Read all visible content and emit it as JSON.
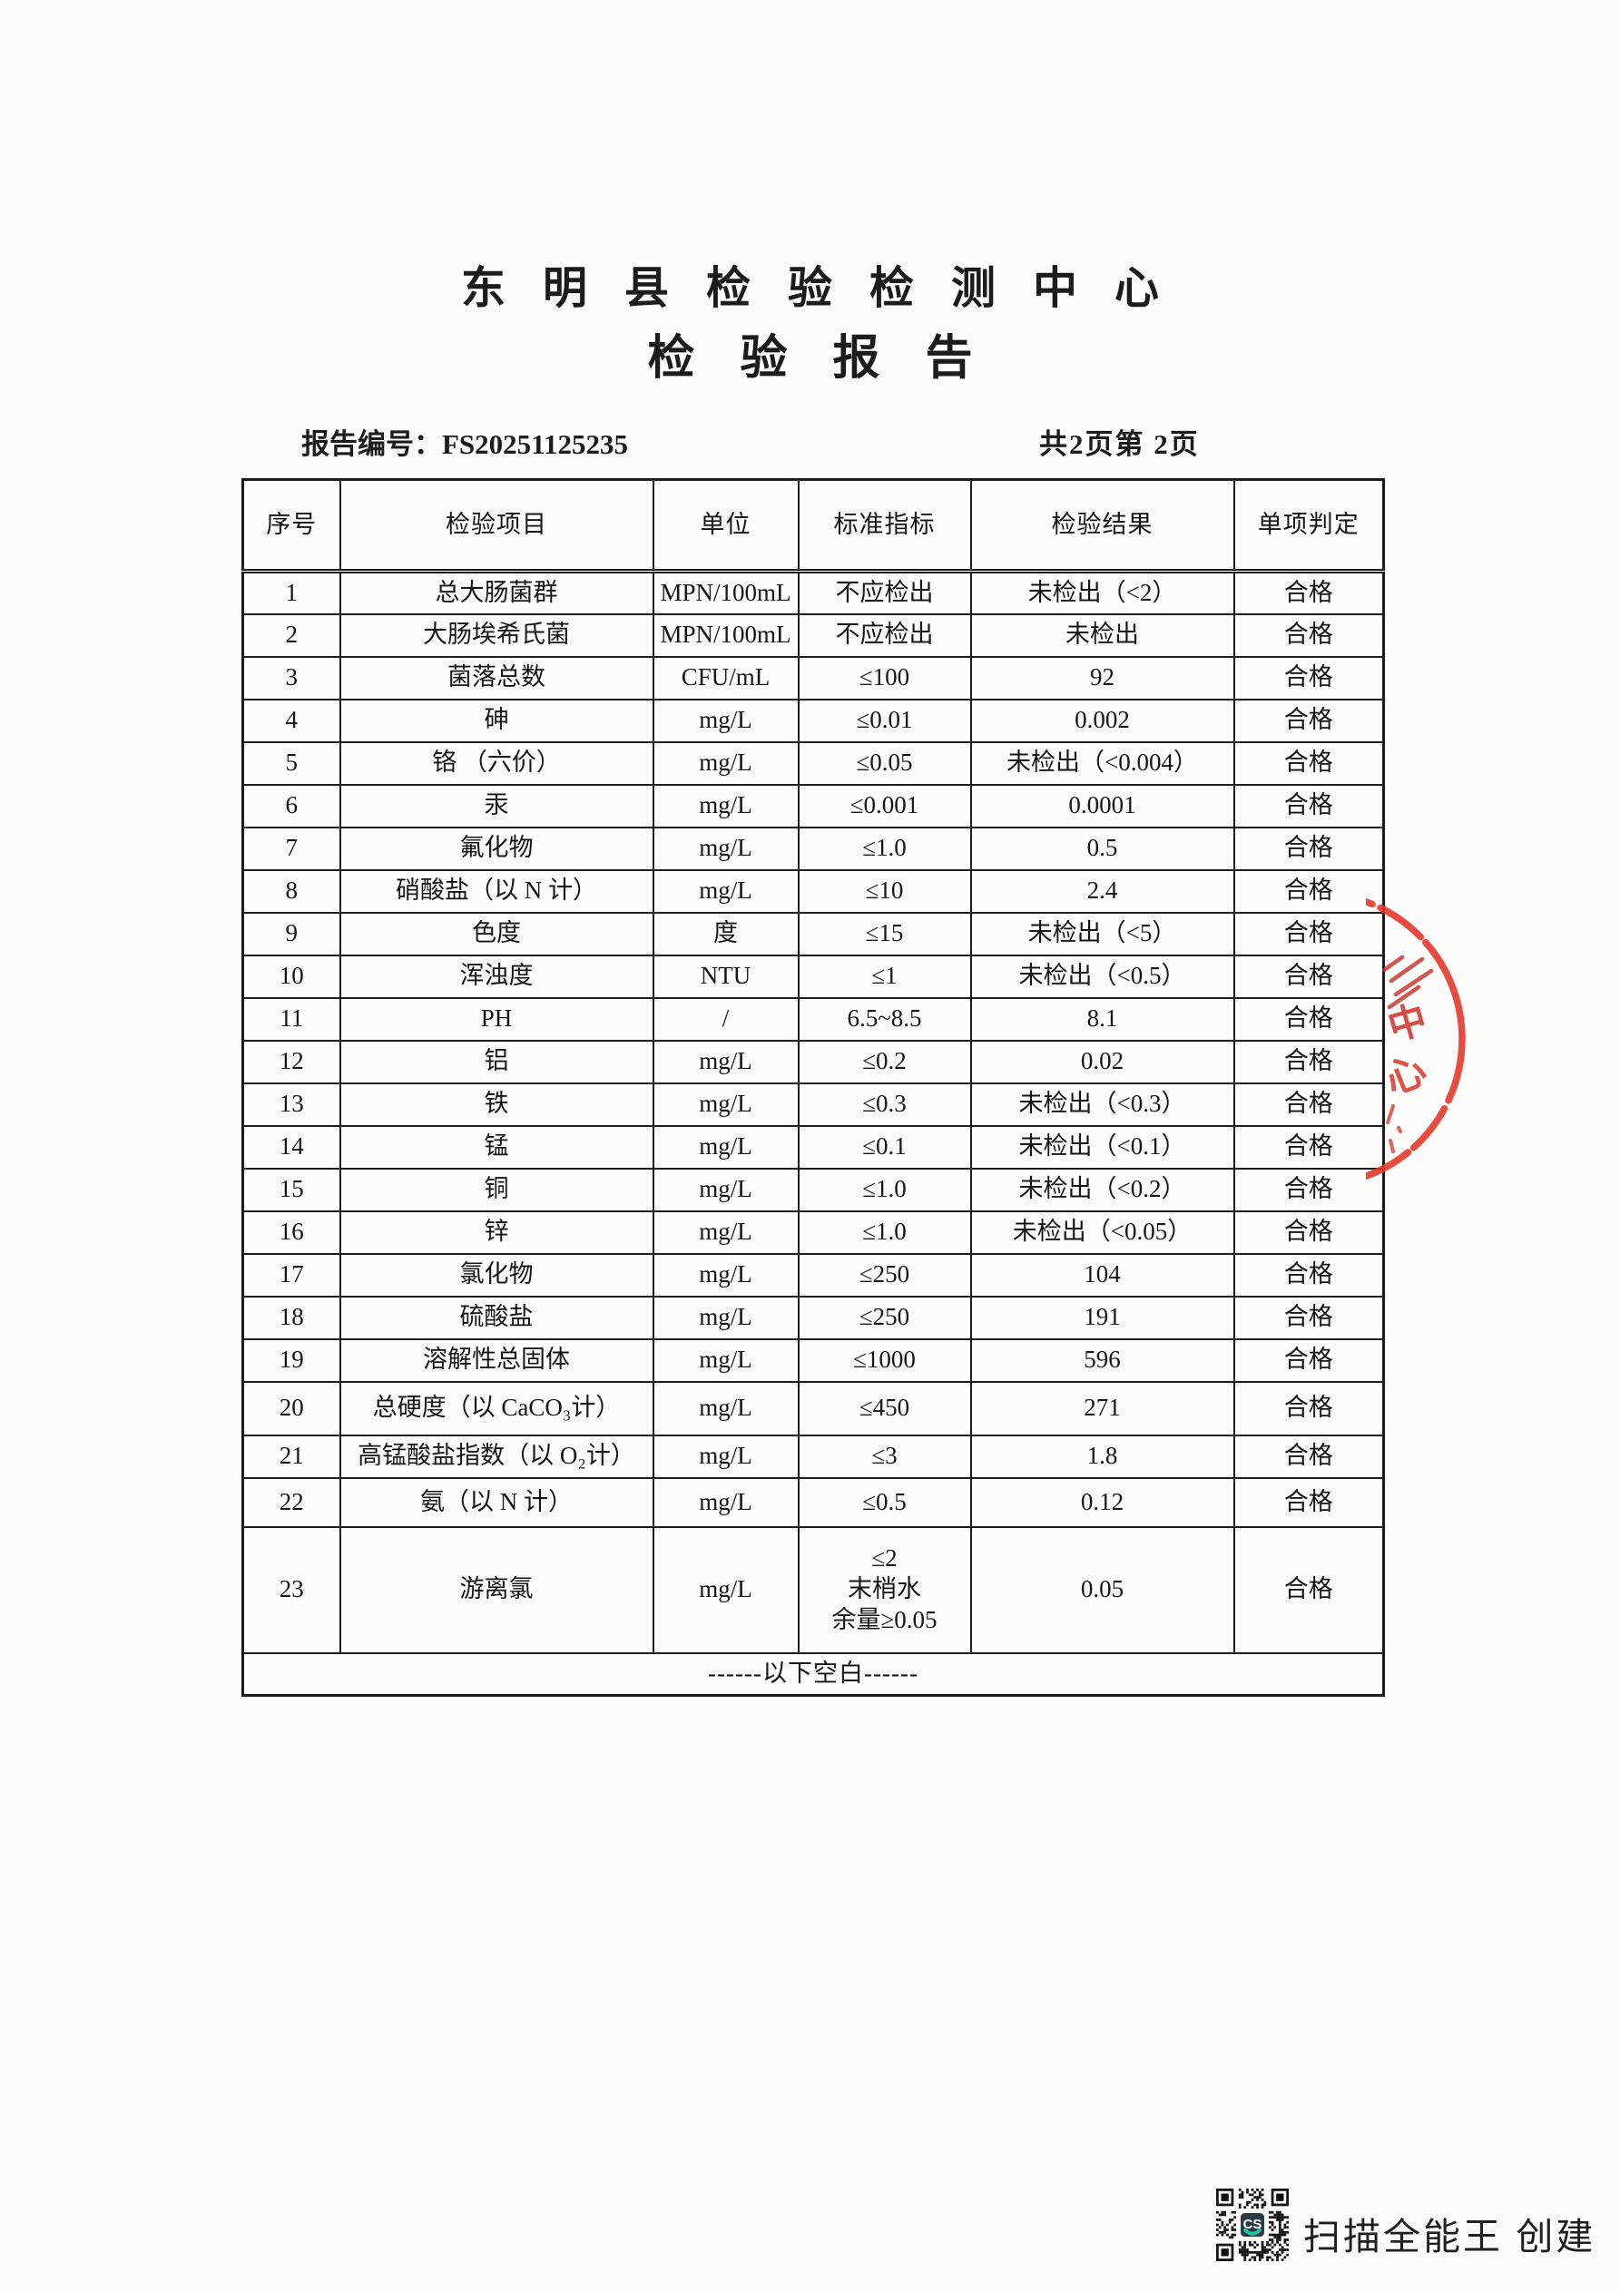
{
  "header": {
    "org_title": "东明县检验检测中心",
    "doc_title": "检验报告",
    "report_no_label": "报告编号：",
    "report_no": "FS20251125235",
    "page_info": "共2页第 2页"
  },
  "table": {
    "columns": [
      "序号",
      "检验项目",
      "单位",
      "标准指标",
      "检验结果",
      "单项判定"
    ],
    "rows": [
      {
        "no": "1",
        "item": "总大肠菌群",
        "unit": "MPN/100mL",
        "standard": "不应检出",
        "result": "未检出（<2）",
        "judgment": "合格"
      },
      {
        "no": "2",
        "item": "大肠埃希氏菌",
        "unit": "MPN/100mL",
        "standard": "不应检出",
        "result": "未检出",
        "judgment": "合格"
      },
      {
        "no": "3",
        "item": "菌落总数",
        "unit": "CFU/mL",
        "standard": "≤100",
        "result": "92",
        "judgment": "合格"
      },
      {
        "no": "4",
        "item": "砷",
        "unit": "mg/L",
        "standard": "≤0.01",
        "result": "0.002",
        "judgment": "合格"
      },
      {
        "no": "5",
        "item": "铬 （六价）",
        "unit": "mg/L",
        "standard": "≤0.05",
        "result": "未检出（<0.004）",
        "judgment": "合格"
      },
      {
        "no": "6",
        "item": "汞",
        "unit": "mg/L",
        "standard": "≤0.001",
        "result": "0.0001",
        "judgment": "合格"
      },
      {
        "no": "7",
        "item": "氟化物",
        "unit": "mg/L",
        "standard": "≤1.0",
        "result": "0.5",
        "judgment": "合格"
      },
      {
        "no": "8",
        "item": "硝酸盐（以 N 计）",
        "unit": "mg/L",
        "standard": "≤10",
        "result": "2.4",
        "judgment": "合格"
      },
      {
        "no": "9",
        "item": "色度",
        "unit": "度",
        "standard": "≤15",
        "result": "未检出（<5）",
        "judgment": "合格"
      },
      {
        "no": "10",
        "item": "浑浊度",
        "unit": "NTU",
        "standard": "≤1",
        "result": "未检出（<0.5）",
        "judgment": "合格"
      },
      {
        "no": "11",
        "item": "PH",
        "unit": "/",
        "standard": "6.5~8.5",
        "result": "8.1",
        "judgment": "合格"
      },
      {
        "no": "12",
        "item": "铝",
        "unit": "mg/L",
        "standard": "≤0.2",
        "result": "0.02",
        "judgment": "合格"
      },
      {
        "no": "13",
        "item": "铁",
        "unit": "mg/L",
        "standard": "≤0.3",
        "result": "未检出（<0.3）",
        "judgment": "合格"
      },
      {
        "no": "14",
        "item": "锰",
        "unit": "mg/L",
        "standard": "≤0.1",
        "result": "未检出（<0.1）",
        "judgment": "合格"
      },
      {
        "no": "15",
        "item": "铜",
        "unit": "mg/L",
        "standard": "≤1.0",
        "result": "未检出（<0.2）",
        "judgment": "合格"
      },
      {
        "no": "16",
        "item": "锌",
        "unit": "mg/L",
        "standard": "≤1.0",
        "result": "未检出（<0.05）",
        "judgment": "合格"
      },
      {
        "no": "17",
        "item": "氯化物",
        "unit": "mg/L",
        "standard": "≤250",
        "result": "104",
        "judgment": "合格"
      },
      {
        "no": "18",
        "item": "硫酸盐",
        "unit": "mg/L",
        "standard": "≤250",
        "result": "191",
        "judgment": "合格"
      },
      {
        "no": "19",
        "item": "溶解性总固体",
        "unit": "mg/L",
        "standard": "≤1000",
        "result": "596",
        "judgment": "合格"
      },
      {
        "no": "20",
        "item": "总硬度（以 CaCO₃计）",
        "unit": "mg/L",
        "standard": "≤450",
        "result": "271",
        "judgment": "合格"
      },
      {
        "no": "21",
        "item": "高锰酸盐指数（以 O₂计）",
        "unit": "mg/L",
        "standard": "≤3",
        "result": "1.8",
        "judgment": "合格"
      },
      {
        "no": "22",
        "item": "氨（以 N 计）",
        "unit": "mg/L",
        "standard": "≤0.5",
        "result": "0.12",
        "judgment": "合格"
      },
      {
        "no": "23",
        "item": "游离氯",
        "unit": "mg/L",
        "standard": "≤2\n末梢水\n余量≥0.05",
        "result": "0.05",
        "judgment": "合格"
      }
    ],
    "footer_note": "------以下空白------"
  },
  "stamp": {
    "type": "red-circular-seal-partial",
    "visible_chars": "中心",
    "color": "#d92f25"
  },
  "brand": {
    "qr_logo_text": "CS",
    "qr_logo_color": "#22c3a6",
    "caption": "扫描全能王 创建"
  }
}
